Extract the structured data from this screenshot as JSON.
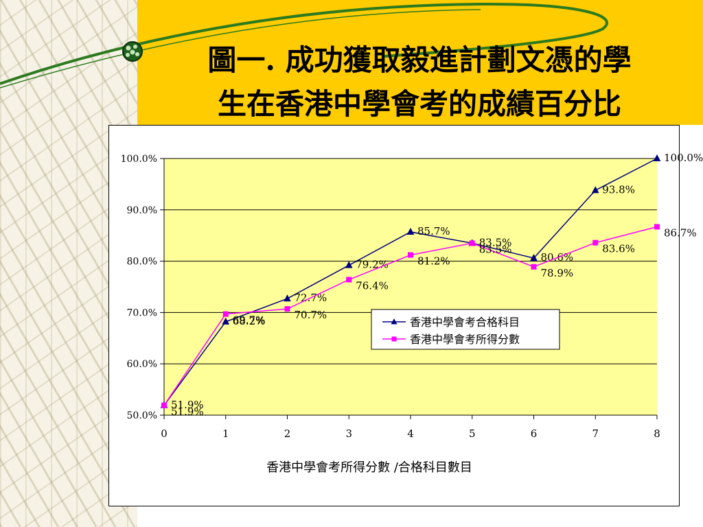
{
  "slide": {
    "title": "圖一. 成功獲取毅進計劃文憑的學\n生在香港中學會考的成績百分比"
  },
  "colors": {
    "title_band": "#ffcc00",
    "plot_bg": "#ffff99",
    "series_pass": "#000080",
    "series_score": "#ff00ff"
  },
  "chart_data": {
    "type": "line",
    "title": "",
    "xlabel": "香港中學會考所得分數  /合格科目數目",
    "ylabel": "",
    "x": [
      0,
      1,
      2,
      3,
      4,
      5,
      6,
      7,
      8
    ],
    "ylim": [
      50,
      100
    ],
    "yticks": [
      "50.0%",
      "60.0%",
      "70.0%",
      "80.0%",
      "90.0%",
      "100.0%"
    ],
    "grid": true,
    "legend_position": "center-right",
    "series": [
      {
        "name": "香港中學會考合格科目",
        "marker": "triangle",
        "values": [
          51.9,
          68.2,
          72.7,
          79.2,
          85.7,
          83.5,
          80.6,
          93.8,
          100.0
        ],
        "labels": [
          "51.9%",
          "68.2%",
          "72.7%",
          "79.2%",
          "85.7%",
          "83.5%",
          "80.6%",
          "93.8%",
          "100.0%"
        ]
      },
      {
        "name": "香港中學會考所得分數",
        "marker": "square",
        "values": [
          51.9,
          69.7,
          70.7,
          76.4,
          81.2,
          83.5,
          78.9,
          83.6,
          86.7
        ],
        "labels": [
          "51.9%",
          "69.7%",
          "70.7%",
          "76.4%",
          "81.2%",
          "83.5%",
          "78.9%",
          "83.6%",
          "86.7%"
        ]
      }
    ]
  }
}
